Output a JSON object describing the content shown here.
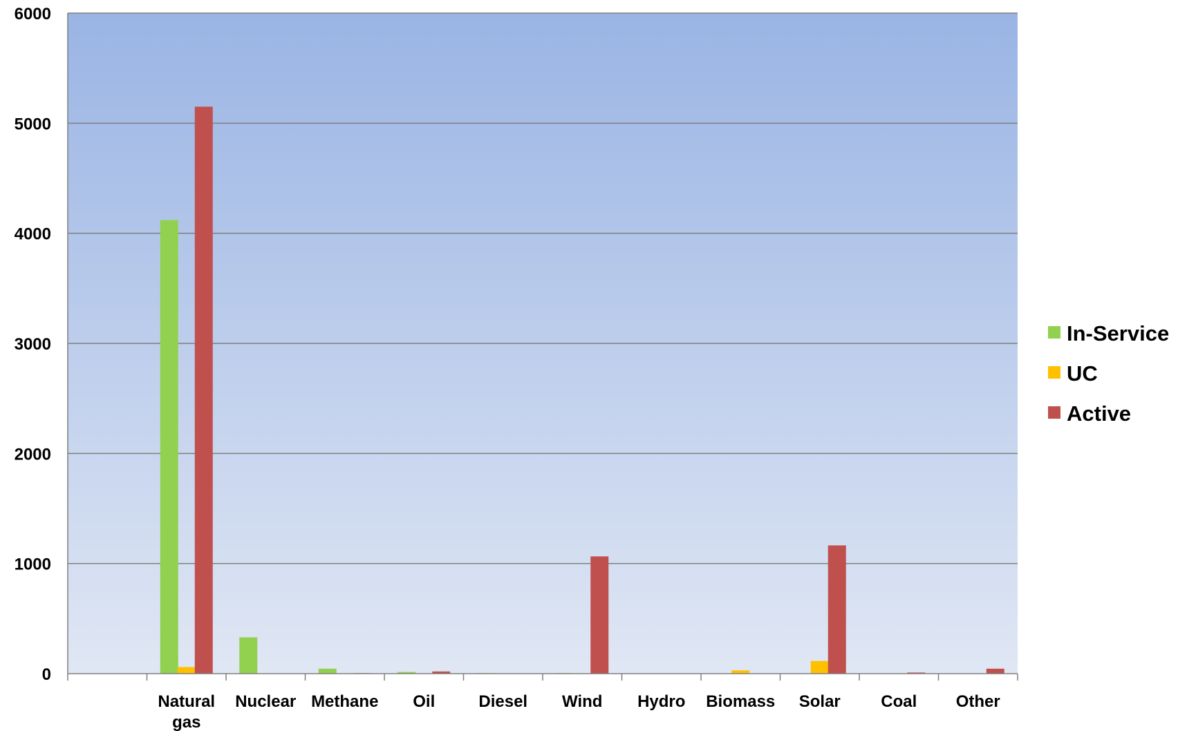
{
  "chart_data": {
    "type": "bar",
    "title": "",
    "xlabel": "",
    "ylabel": "",
    "ylim": [
      0,
      6000
    ],
    "yticks": [
      0,
      1000,
      2000,
      3000,
      4000,
      5000,
      6000
    ],
    "grid": true,
    "legend_position": "right",
    "categories": [
      "",
      "Natural gas",
      "Nuclear",
      "Methane",
      "Oil",
      "Diesel",
      "Wind",
      "Hydro",
      "Biomass",
      "Solar",
      "Coal",
      "Other"
    ],
    "series": [
      {
        "name": "In-Service",
        "color": "#92d050",
        "values": [
          0,
          4120,
          330,
          45,
          15,
          5,
          5,
          0,
          0,
          0,
          0,
          0
        ]
      },
      {
        "name": "UC",
        "color": "#ffc000",
        "values": [
          0,
          60,
          0,
          0,
          0,
          0,
          0,
          0,
          30,
          115,
          0,
          0
        ]
      },
      {
        "name": "Active",
        "color": "#c0504d",
        "values": [
          0,
          5150,
          0,
          5,
          20,
          0,
          1065,
          0,
          0,
          1165,
          10,
          45
        ]
      }
    ]
  }
}
